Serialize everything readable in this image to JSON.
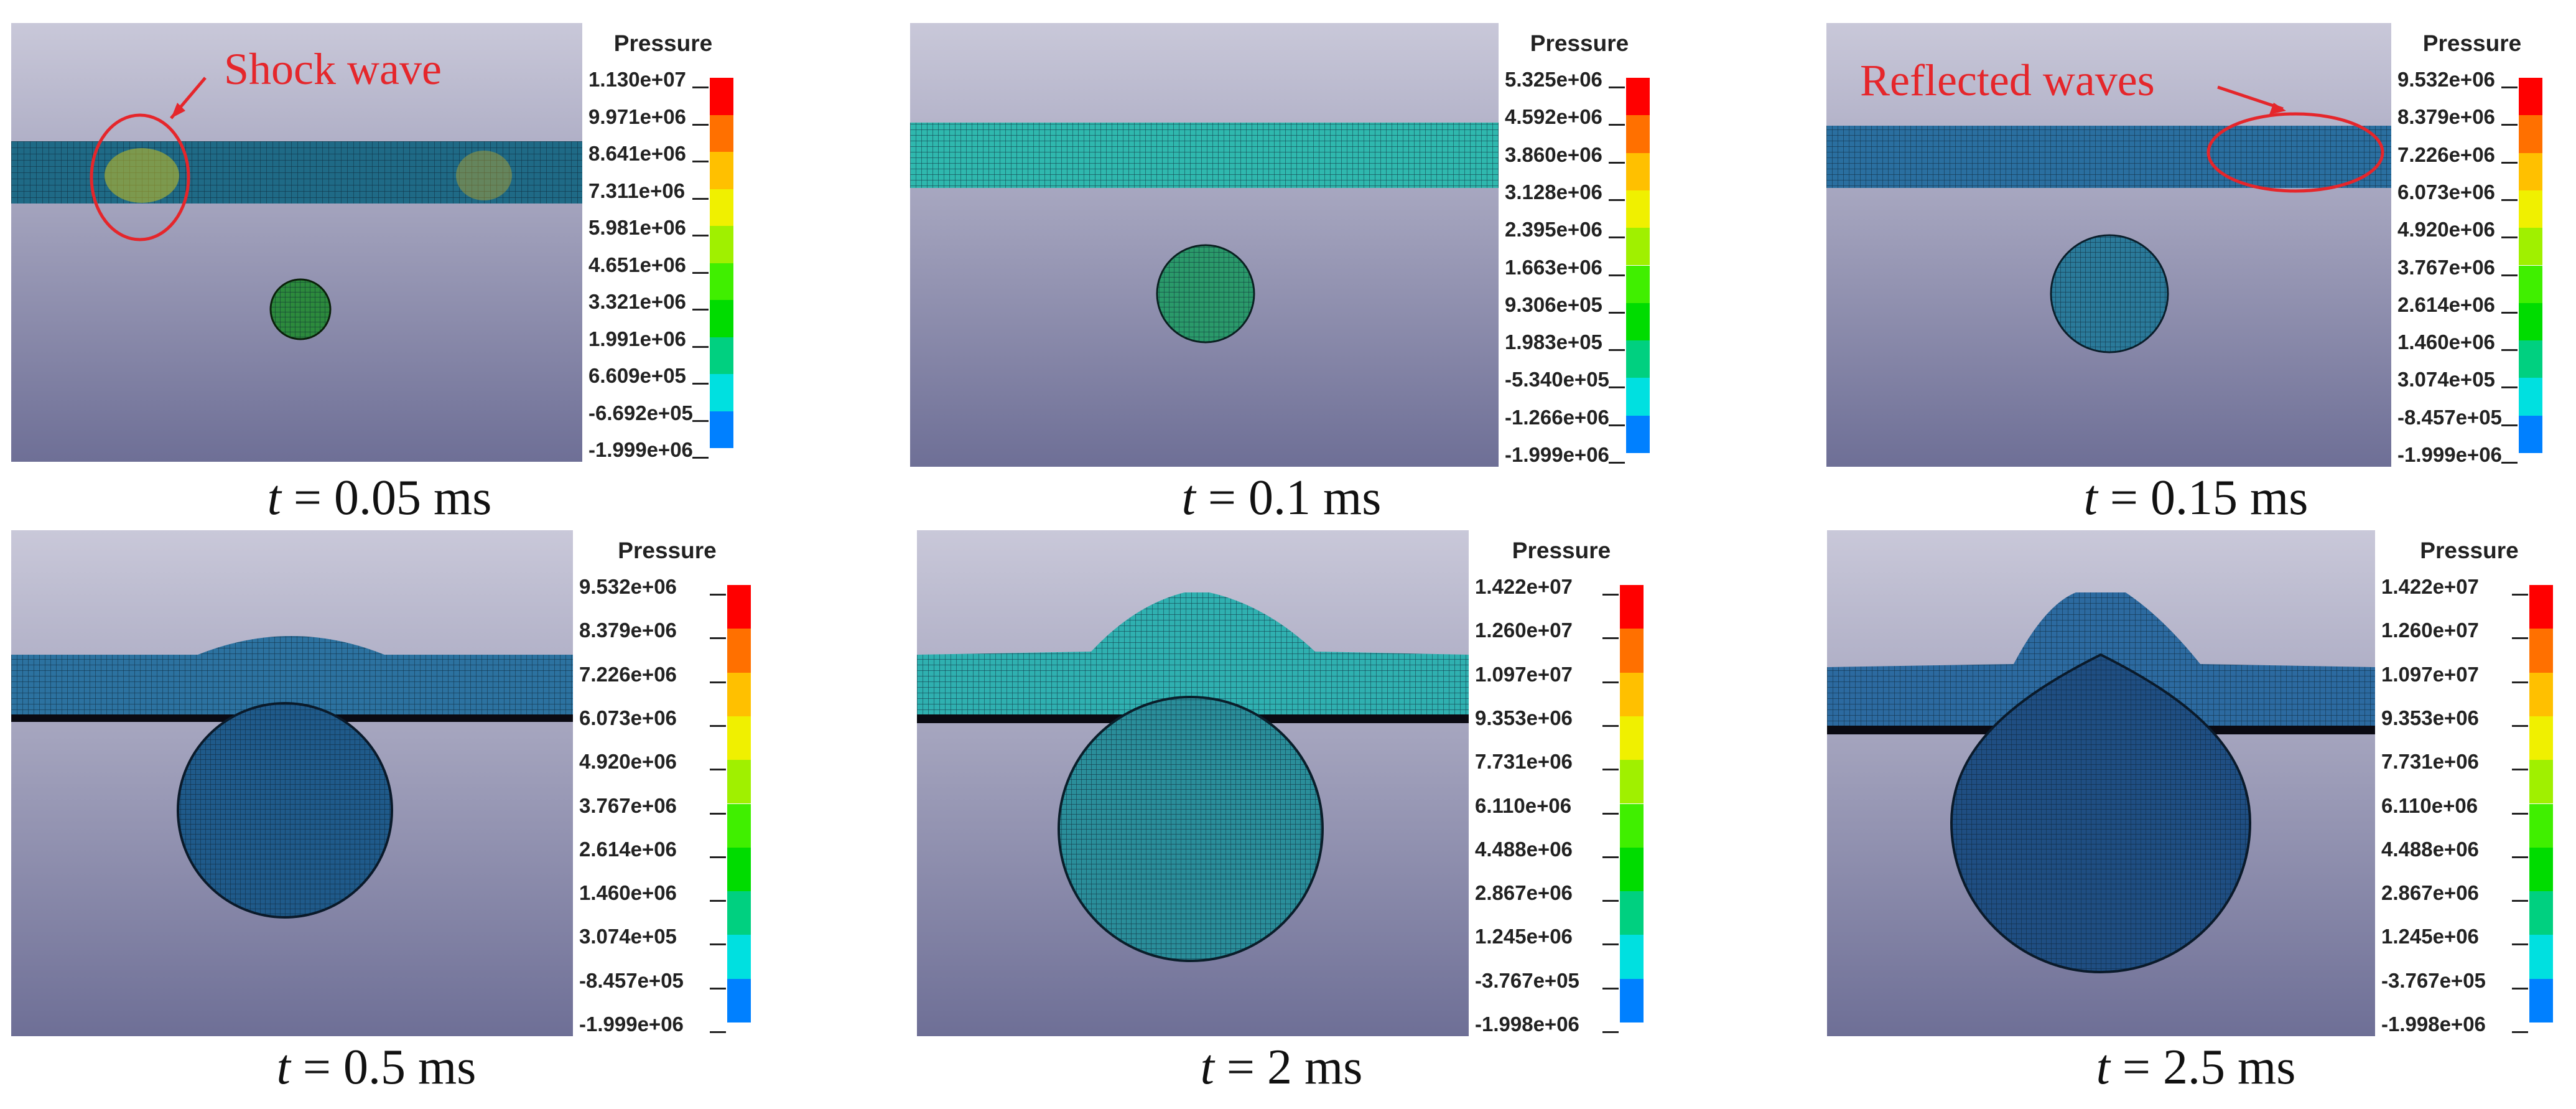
{
  "figure": {
    "legend_title": "Pressure",
    "colors": {
      "background_top": "#c9c8d9",
      "background_bottom": "#6e6f96",
      "annotation": "#e5262b",
      "mesh_line": "#0a2030",
      "scale": [
        "#0000ff",
        "#0080ff",
        "#00e0e0",
        "#00d080",
        "#00dc00",
        "#40ef00",
        "#a0f000",
        "#f0f000",
        "#ffc000",
        "#ff7000",
        "#ff0000"
      ]
    },
    "panels": [
      {
        "caption": "= 0.05 ms",
        "t_label": "t",
        "ticks": [
          "1.130e+07",
          "9.971e+06",
          "8.641e+06",
          "7.311e+06",
          "5.981e+06",
          "4.651e+06",
          "3.321e+06",
          "1.991e+06",
          "6.609e+05",
          "-6.692e+05",
          "-1.999e+06"
        ],
        "annotation": "Shock wave"
      },
      {
        "caption": "= 0.1 ms",
        "t_label": "t",
        "ticks": [
          "5.325e+06",
          "4.592e+06",
          "3.860e+06",
          "3.128e+06",
          "2.395e+06",
          "1.663e+06",
          "9.306e+05",
          "1.983e+05",
          "-5.340e+05",
          "-1.266e+06",
          "-1.999e+06"
        ]
      },
      {
        "caption": "= 0.15 ms",
        "t_label": "t",
        "ticks": [
          "9.532e+06",
          "8.379e+06",
          "7.226e+06",
          "6.073e+06",
          "4.920e+06",
          "3.767e+06",
          "2.614e+06",
          "1.460e+06",
          "3.074e+05",
          "-8.457e+05",
          "-1.999e+06"
        ],
        "annotation": "Reflected waves"
      },
      {
        "caption": "= 0.5 ms",
        "t_label": "t",
        "ticks": [
          "9.532e+06",
          "8.379e+06",
          "7.226e+06",
          "6.073e+06",
          "4.920e+06",
          "3.767e+06",
          "2.614e+06",
          "1.460e+06",
          "3.074e+05",
          "-8.457e+05",
          "-1.999e+06"
        ]
      },
      {
        "caption": "= 2 ms",
        "t_label": "t",
        "ticks": [
          "1.422e+07",
          "1.260e+07",
          "1.097e+07",
          "9.353e+06",
          "7.731e+06",
          "6.110e+06",
          "4.488e+06",
          "2.867e+06",
          "1.245e+06",
          "-3.767e+05",
          "-1.998e+06"
        ]
      },
      {
        "caption": "= 2.5 ms",
        "t_label": "t",
        "ticks": [
          "1.422e+07",
          "1.260e+07",
          "1.097e+07",
          "9.353e+06",
          "7.731e+06",
          "6.110e+06",
          "4.488e+06",
          "2.867e+06",
          "1.245e+06",
          "-3.767e+05",
          "-1.998e+06"
        ]
      }
    ]
  }
}
